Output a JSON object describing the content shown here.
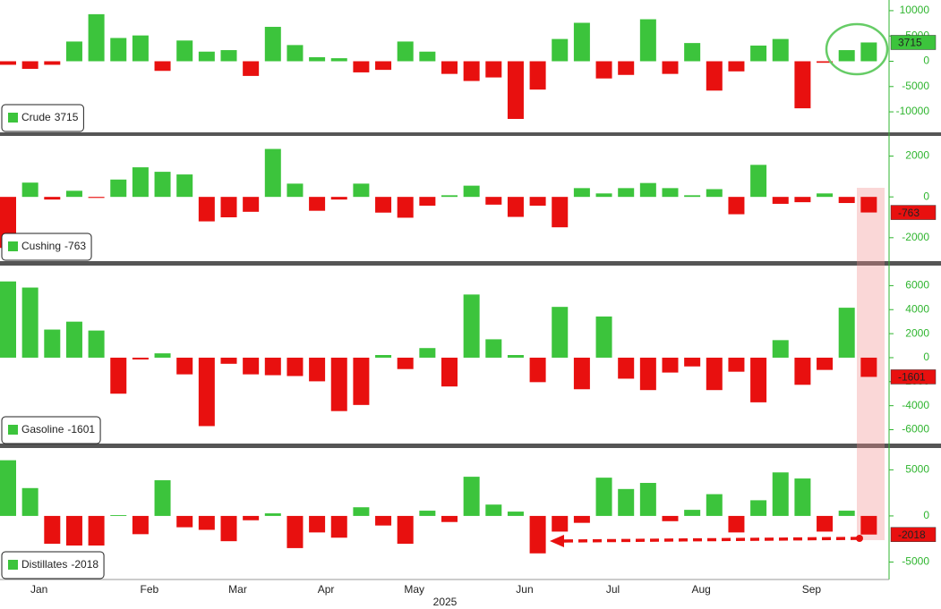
{
  "chart_data": [
    {
      "type": "bar",
      "positive_color": "#3cc43c",
      "negative_color": "#e8100f",
      "series": [
        {
          "name": "Crude",
          "color": "#3cc43c",
          "values": [
            -700,
            -1500,
            -700,
            3900,
            9300,
            4600,
            5100,
            -1900,
            4100,
            1900,
            2200,
            -2900,
            6800,
            3200,
            800,
            600,
            -2200,
            -1700,
            3900,
            1900,
            -2500,
            -3900,
            -3200,
            -11400,
            -5600,
            4400,
            7600,
            -3400,
            -2700,
            8300,
            -2500,
            3600,
            -5800,
            -2000,
            3100,
            4400,
            -9300,
            -300,
            2200,
            3715
          ]
        }
      ],
      "ylim": [
        -13700,
        11400
      ],
      "yticks": [
        -10000,
        -5000,
        0,
        5000,
        10000
      ]
    },
    {
      "type": "bar",
      "positive_color": "#3cc43c",
      "negative_color": "#e8100f",
      "series": [
        {
          "name": "Cushing",
          "color": "#3cc43c",
          "values": [
            -2500,
            700,
            -130,
            300,
            -50,
            850,
            1450,
            1230,
            1100,
            -1200,
            -1000,
            -730,
            2350,
            650,
            -680,
            -130,
            650,
            -770,
            -1020,
            -430,
            80,
            550,
            -380,
            -980,
            -430,
            -1490,
            430,
            170,
            430,
            680,
            430,
            80,
            380,
            -850,
            1570,
            -340,
            -260,
            170,
            -300,
            -763
          ]
        }
      ],
      "ylim": [
        -3060,
        2900
      ],
      "yticks": [
        -2000,
        0,
        2000
      ]
    },
    {
      "type": "bar",
      "positive_color": "#3cc43c",
      "negative_color": "#e8100f",
      "series": [
        {
          "name": "Gasoline",
          "color": "#3cc43c",
          "values": [
            6350,
            5840,
            2340,
            3000,
            2260,
            -3000,
            -150,
            360,
            -1390,
            -5700,
            -510,
            -1390,
            -1460,
            -1530,
            -1970,
            -4450,
            -3940,
            220,
            -950,
            800,
            -2400,
            5260,
            1530,
            220,
            -2040,
            4230,
            -2630,
            3430,
            -1750,
            -2700,
            -1240,
            -730,
            -2700,
            -1170,
            -3720,
            1460,
            -2260,
            -1020,
            4160,
            -1601
          ]
        }
      ],
      "ylim": [
        -7080,
        7520
      ],
      "yticks": [
        -6000,
        -4000,
        -2000,
        0,
        2000,
        4000,
        6000
      ]
    },
    {
      "type": "bar",
      "positive_color": "#3cc43c",
      "negative_color": "#e8100f",
      "series": [
        {
          "name": "Distillates",
          "color": "#3cc43c",
          "values": [
            6040,
            3020,
            -3020,
            -3210,
            -3210,
            90,
            -1980,
            3870,
            -1230,
            -1510,
            -2740,
            -470,
            280,
            -3490,
            -1790,
            -2360,
            940,
            -1040,
            -3020,
            570,
            -660,
            4250,
            1230,
            470,
            -4060,
            -1700,
            -750,
            4150,
            2920,
            3580,
            -570,
            660,
            2360,
            -1790,
            1700,
            4720,
            4060,
            -1700,
            570,
            -2018
          ]
        }
      ],
      "ylim": [
        -6700,
        7170
      ],
      "yticks": [
        -5000,
        0,
        5000
      ],
      "categories": [
        null,
        "Jan",
        null,
        null,
        null,
        null,
        "Feb",
        null,
        null,
        null,
        "Mar",
        null,
        null,
        null,
        "Apr",
        null,
        null,
        null,
        "May",
        null,
        null,
        null,
        null,
        "Jun",
        null,
        null,
        null,
        "Jul",
        null,
        null,
        null,
        "Aug",
        null,
        null,
        null,
        null,
        "Sep",
        null,
        null,
        null
      ],
      "x_label": "2025"
    }
  ]
}
